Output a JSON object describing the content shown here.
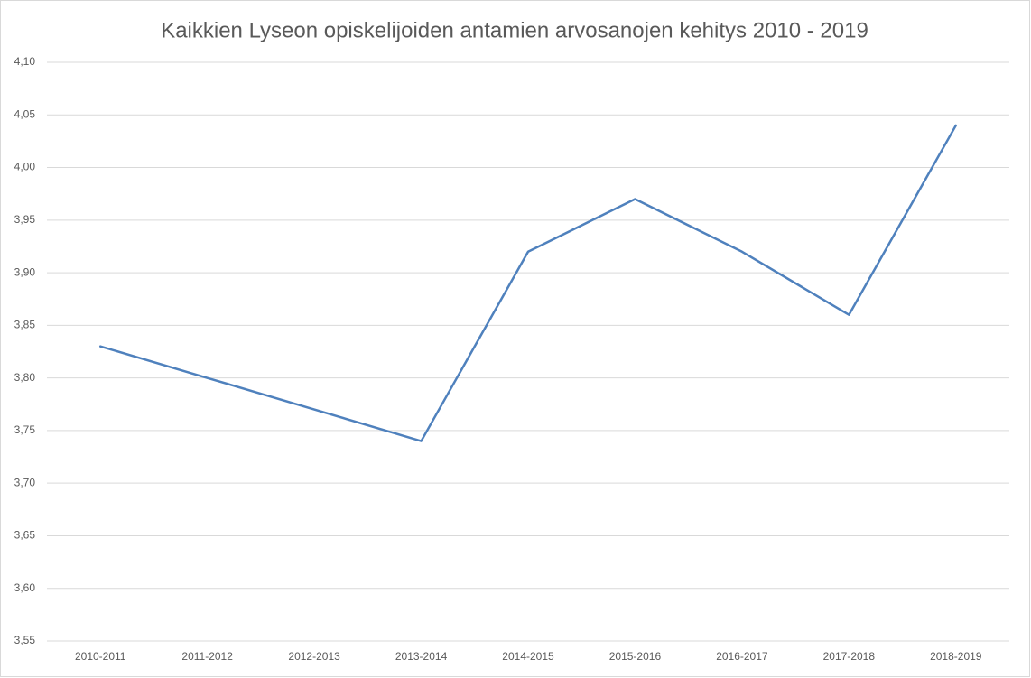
{
  "chart_data": {
    "type": "line",
    "title": "Kaikkien Lyseon opiskelijoiden antamien arvosanojen kehitys 2010 - 2019",
    "categories": [
      "2010-2011",
      "2011-2012",
      "2012-2013",
      "2013-2014",
      "2014-2015",
      "2015-2016",
      "2016-2017",
      "2017-2018",
      "2018-2019"
    ],
    "series": [
      {
        "color": "#4f81bd",
        "values": [
          3.83,
          3.8,
          3.77,
          3.74,
          3.92,
          3.97,
          3.92,
          3.86,
          4.04
        ]
      }
    ],
    "ylim": [
      3.55,
      4.1
    ],
    "yticks": [
      {
        "value": 3.55,
        "label": "3,55"
      },
      {
        "value": 3.6,
        "label": "3,60"
      },
      {
        "value": 3.65,
        "label": "3,65"
      },
      {
        "value": 3.7,
        "label": "3,70"
      },
      {
        "value": 3.75,
        "label": "3,75"
      },
      {
        "value": 3.8,
        "label": "3,80"
      },
      {
        "value": 3.85,
        "label": "3,85"
      },
      {
        "value": 3.9,
        "label": "3,90"
      },
      {
        "value": 3.95,
        "label": "3,95"
      },
      {
        "value": 4.0,
        "label": "4,00"
      },
      {
        "value": 4.05,
        "label": "4,05"
      },
      {
        "value": 4.1,
        "label": "4,10"
      }
    ],
    "grid": true
  }
}
